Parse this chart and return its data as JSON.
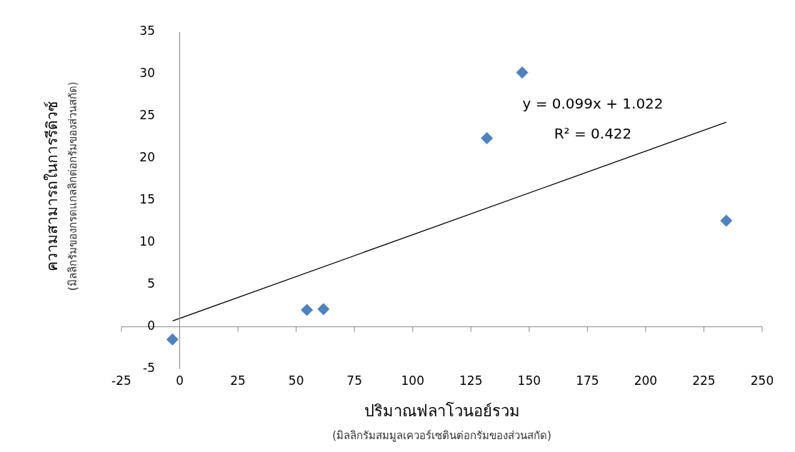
{
  "chart_data": {
    "type": "scatter",
    "xlabel": "ปริมาณฟลาโวนอย์รวม\n(มิลลิกรัมสมมูลเควอร์เซตินต่อกรัมของส่วนสกัด)",
    "ylabel": "ความสามารถในการรีดิวซ์\n(มิลลิกรัมของกรดแกลลิกต่อกรัมของส่วนสกัด)",
    "series": [
      {
        "color": "#4f81bd",
        "marker": "diamond",
        "x": [
          -3.1,
          54.6,
          61.7,
          131.9,
          147,
          234.6
        ],
        "values": [
          -1.5,
          2.0,
          2.1,
          22.4,
          30.2,
          12.6
        ]
      },
      {
        "type": "line",
        "color": "#000000",
        "marker": "none",
        "line_style": "solid",
        "x": [
          -3,
          234.6
        ],
        "values": [
          0.7,
          24.3
        ]
      }
    ],
    "annotations": [
      "y = 0.099x + 1.022",
      "R² = 0.422"
    ],
    "xlim": [
      -25,
      250
    ],
    "xticks": [
      -25,
      0,
      25,
      50,
      75,
      100,
      125,
      150,
      175,
      200,
      225,
      250
    ],
    "ylim": [
      -5,
      35
    ],
    "yticks": [
      -5,
      0,
      5,
      10,
      15,
      20,
      25,
      30,
      35
    ],
    "legend": false
  }
}
